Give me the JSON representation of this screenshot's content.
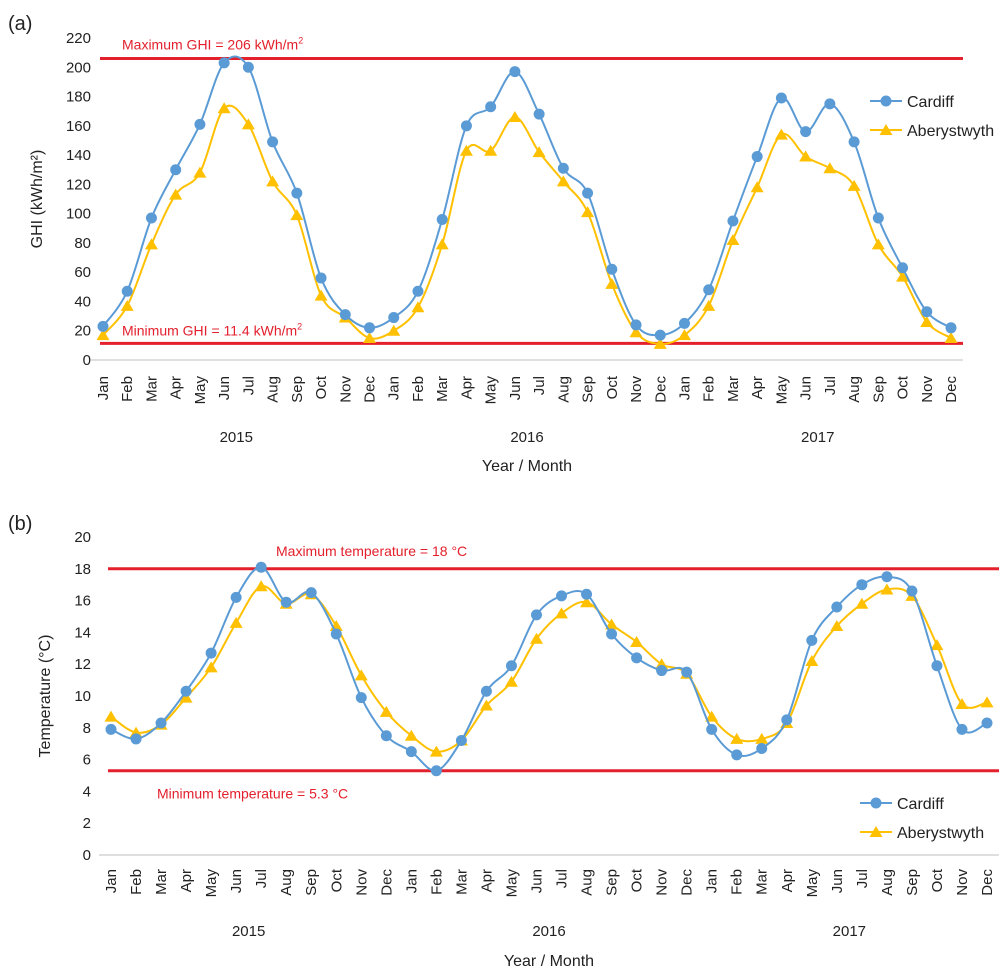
{
  "colors": {
    "cardiff": "#5B9BD5",
    "aberystwyth": "#FFC000",
    "reference": "#E3202C",
    "axis": "#bfbfbf",
    "text": "#222222"
  },
  "chart_data": [
    {
      "panel_label": "(a)",
      "type": "line",
      "ylabel": "GHI (kWh/m²)",
      "xlabel": "Year / Month",
      "ylim": [
        0,
        220
      ],
      "yticks": [
        0,
        20,
        40,
        60,
        80,
        100,
        120,
        140,
        160,
        180,
        200,
        220
      ],
      "months": [
        "Jan",
        "Feb",
        "Mar",
        "Apr",
        "May",
        "Jun",
        "Jul",
        "Aug",
        "Sep",
        "Oct",
        "Nov",
        "Dec",
        "Jan",
        "Feb",
        "Mar",
        "Apr",
        "May",
        "Jun",
        "Jul",
        "Aug",
        "Sep",
        "Oct",
        "Nov",
        "Dec",
        "Jan",
        "Feb",
        "Mar",
        "Apr",
        "May",
        "Jun",
        "Jul",
        "Aug",
        "Sep",
        "Oct",
        "Nov",
        "Dec"
      ],
      "years": [
        "2015",
        "2016",
        "2017"
      ],
      "series": [
        {
          "name": "Cardiff",
          "marker": "circle",
          "values": [
            23,
            47,
            97,
            130,
            161,
            203,
            200,
            149,
            114,
            56,
            31,
            22,
            29,
            47,
            96,
            160,
            173,
            197,
            168,
            131,
            114,
            62,
            24,
            17,
            25,
            48,
            95,
            139,
            179,
            156,
            175,
            149,
            97,
            63,
            33,
            22
          ]
        },
        {
          "name": "Aberystwyth",
          "marker": "triangle",
          "values": [
            17,
            37,
            79,
            113,
            128,
            172,
            161,
            122,
            99,
            44,
            29,
            15,
            20,
            36,
            79,
            143,
            143,
            166,
            142,
            122,
            101,
            52,
            19,
            11,
            17,
            37,
            82,
            118,
            154,
            139,
            131,
            119,
            79,
            57,
            26,
            15
          ]
        }
      ],
      "reference_lines": [
        {
          "value": 206,
          "label": "Maximum GHI = 206 kWh/m",
          "sup": "2"
        },
        {
          "value": 11.4,
          "label": "Minimum GHI = 11.4 kWh/m",
          "sup": "2"
        }
      ],
      "legend_position": "right",
      "grid": false
    },
    {
      "panel_label": "(b)",
      "type": "line",
      "ylabel": "Temperature (°C)",
      "xlabel": "Year / Month",
      "ylim": [
        0,
        20
      ],
      "yticks": [
        0,
        2,
        4,
        6,
        8,
        10,
        12,
        14,
        16,
        18,
        20
      ],
      "months": [
        "Jan",
        "Feb",
        "Mar",
        "Apr",
        "May",
        "Jun",
        "Jul",
        "Aug",
        "Sep",
        "Oct",
        "Nov",
        "Dec",
        "Jan",
        "Feb",
        "Mar",
        "Apr",
        "May",
        "Jun",
        "Jul",
        "Aug",
        "Sep",
        "Oct",
        "Nov",
        "Dec",
        "Jan",
        "Feb",
        "Mar",
        "Apr",
        "May",
        "Jun",
        "Jul",
        "Aug",
        "Sep",
        "Oct",
        "Nov",
        "Dec"
      ],
      "years": [
        "2015",
        "2016",
        "2017"
      ],
      "series": [
        {
          "name": "Cardiff",
          "marker": "circle",
          "values": [
            7.9,
            7.3,
            8.3,
            10.3,
            12.7,
            16.2,
            18.1,
            15.9,
            16.5,
            13.9,
            9.9,
            7.5,
            6.5,
            5.3,
            7.2,
            10.3,
            11.9,
            15.1,
            16.3,
            16.4,
            13.9,
            12.4,
            11.6,
            11.5,
            7.9,
            6.3,
            6.7,
            8.5,
            13.5,
            15.6,
            17.0,
            17.5,
            16.6,
            11.9,
            7.9,
            8.3
          ]
        },
        {
          "name": "Aberystwyth",
          "marker": "triangle",
          "values": [
            8.7,
            7.7,
            8.2,
            9.9,
            11.8,
            14.6,
            16.9,
            15.8,
            16.4,
            14.4,
            11.3,
            9.0,
            7.5,
            6.5,
            7.2,
            9.4,
            10.9,
            13.6,
            15.2,
            15.9,
            14.5,
            13.4,
            12.0,
            11.4,
            8.7,
            7.3,
            7.3,
            8.3,
            12.2,
            14.4,
            15.8,
            16.7,
            16.3,
            13.2,
            9.5,
            9.6
          ]
        }
      ],
      "reference_lines": [
        {
          "value": 18,
          "label": "Maximum temperature = 18 °C",
          "sup": ""
        },
        {
          "value": 5.3,
          "label": "Minimum temperature = 5.3 °C",
          "sup": ""
        }
      ],
      "legend_position": "bottom-right",
      "grid": false
    }
  ]
}
